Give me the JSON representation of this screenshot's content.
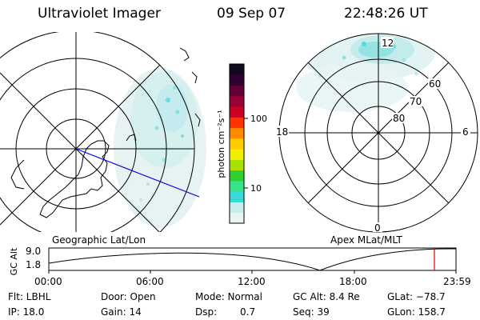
{
  "header": {
    "instrument": "Ultraviolet Imager",
    "date": "09 Sep 07",
    "time": "22:48:26 UT"
  },
  "colorbar": {
    "unit_label": "photon cm⁻²s⁻¹",
    "ticks": [
      "100",
      "10"
    ],
    "scale": "log",
    "colors": [
      "#e8f4f4",
      "#c9ecee",
      "#3ad9d9",
      "#38e28a",
      "#2ecf2e",
      "#a8e000",
      "#f0f000",
      "#ffcc00",
      "#ff8800",
      "#ff3300",
      "#cc0022",
      "#990033",
      "#66003a",
      "#330033",
      "#0f0a22"
    ]
  },
  "left_map": {
    "caption": "Geographic Lat/Lon"
  },
  "right_map": {
    "caption": "Apex MLat/MLT",
    "mlt_labels": {
      "top": "12",
      "left": "18",
      "right": "6",
      "bottom": "0"
    },
    "mlat_labels": [
      "60",
      "70",
      "80"
    ]
  },
  "timeline": {
    "axis_label": "GC Alt",
    "y_top": "9.0",
    "y_bottom": "1.8",
    "x_ticks": [
      "00:00",
      "06:00",
      "12:00",
      "18:00",
      "23:59"
    ],
    "marker_color": "#e00000"
  },
  "footer": {
    "filter": "Flt: LBHL",
    "door": "Door: Open",
    "mode": "Mode: Normal",
    "gc_alt": "GC Alt: 8.4 Re",
    "glat": "GLat: −78.7",
    "ip": "IP: 18.0",
    "gain": "Gain: 14",
    "dsp_label": "Dsp:",
    "dsp_value": "0.7",
    "seq": "Seq: 39",
    "glon": "GLon: 158.7"
  }
}
